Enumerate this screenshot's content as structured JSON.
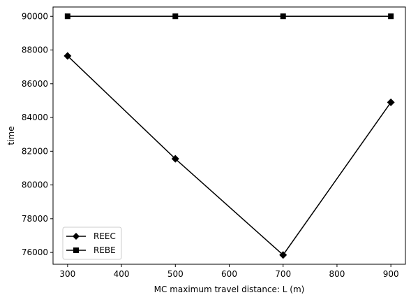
{
  "chart_data": {
    "type": "line",
    "title": "",
    "xlabel": "MC maximum travel distance: L (m)",
    "ylabel": "time",
    "x": [
      300,
      500,
      700,
      900
    ],
    "xlim": [
      273,
      927
    ],
    "ylim": [
      75300,
      90550
    ],
    "xticks": [
      300,
      400,
      500,
      600,
      700,
      800,
      900
    ],
    "yticks": [
      76000,
      78000,
      80000,
      82000,
      84000,
      86000,
      88000,
      90000
    ],
    "grid": false,
    "legend_position": "lower-left",
    "series": [
      {
        "name": "REEC",
        "marker": "diamond",
        "color": "#000000",
        "values": [
          87650,
          81550,
          75850,
          84900
        ]
      },
      {
        "name": "REBE",
        "marker": "square",
        "color": "#000000",
        "values": [
          90000,
          90000,
          90000,
          90000
        ]
      }
    ]
  }
}
